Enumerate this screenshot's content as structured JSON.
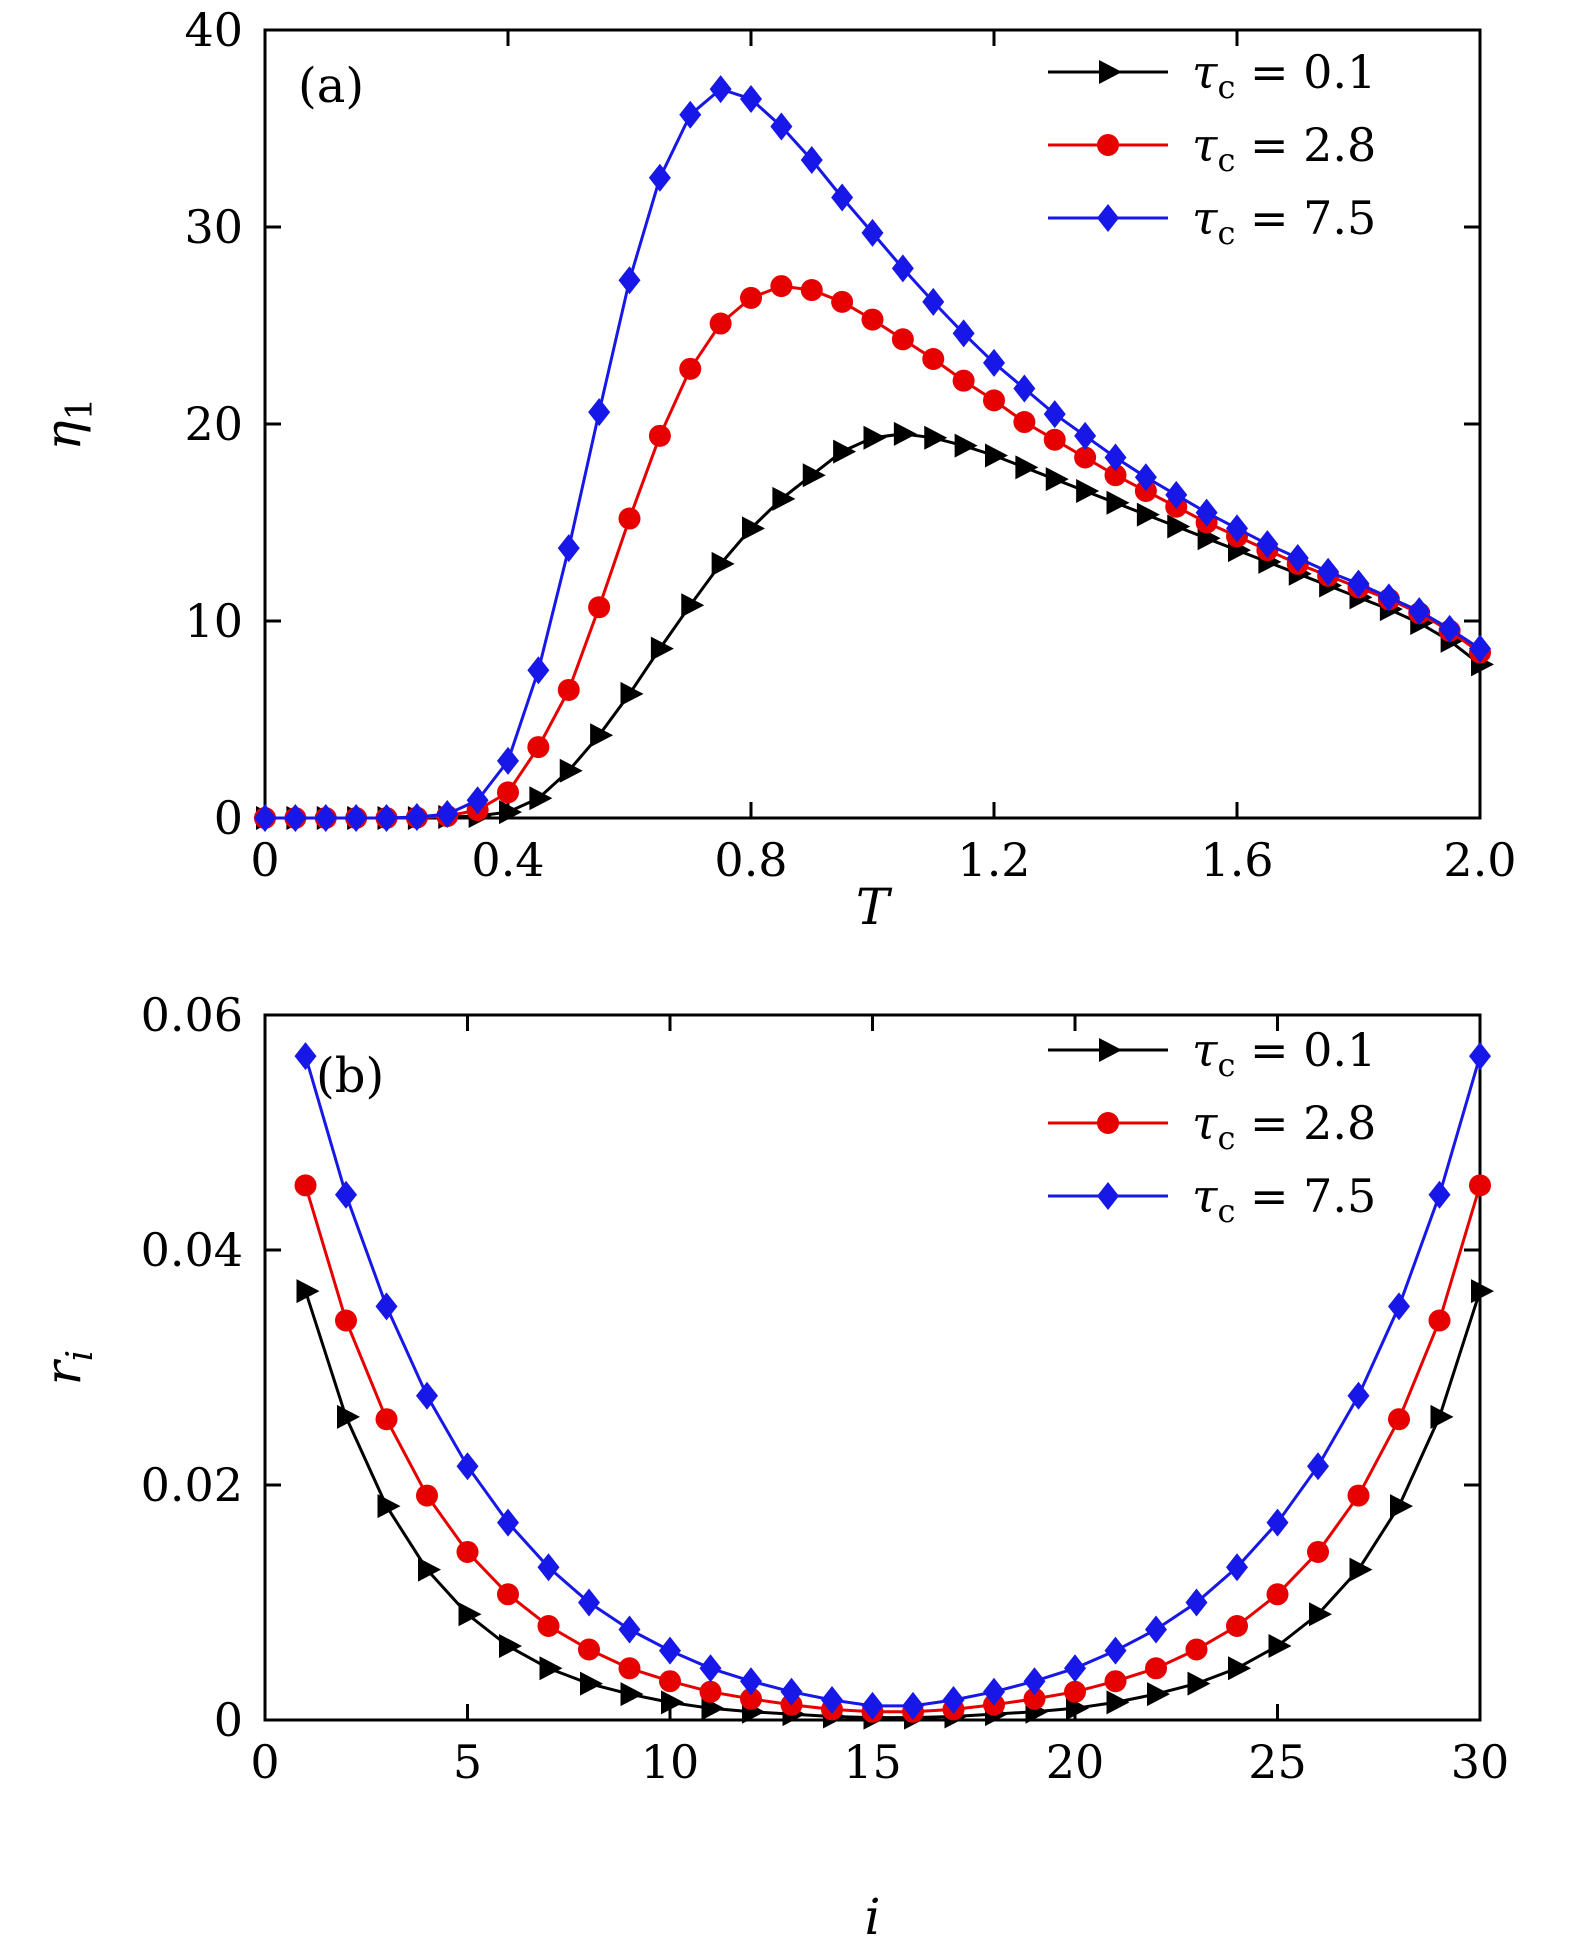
{
  "figure": {
    "background": "#ffffff",
    "panel_labels": [
      "(a)",
      "(b)"
    ]
  },
  "colors": {
    "black": "#000000",
    "red": "#e60000",
    "blue": "#1717e8"
  },
  "chart_data": [
    {
      "type": "line",
      "panel_label": "(a)",
      "xlabel": "T",
      "xlabel_italic": true,
      "ylabel": {
        "sym": "η",
        "sub": "1",
        "sub_italic": false
      },
      "xlim": [
        0,
        2.0
      ],
      "ylim": [
        0,
        40
      ],
      "xticks": {
        "values": [
          0,
          0.4,
          0.8,
          1.2,
          1.6,
          2.0
        ],
        "labels": [
          "0",
          "0.4",
          "0.8",
          "1.2",
          "1.6",
          "2.0"
        ]
      },
      "yticks": {
        "values": [
          0,
          10,
          20,
          30,
          40
        ],
        "labels": [
          "0",
          "10",
          "20",
          "30",
          "40"
        ]
      },
      "grid": false,
      "legend_position": "top-right",
      "series": [
        {
          "id": "tauc-0p1",
          "name": "τc = 0.1",
          "label": {
            "sym": "τ",
            "sub": "c",
            "rest": "= 0.1"
          },
          "color": "#000000",
          "marker": "triangle-right",
          "x": [
            0,
            0.05,
            0.1,
            0.15,
            0.2,
            0.25,
            0.3,
            0.35,
            0.4,
            0.45,
            0.5,
            0.55,
            0.6,
            0.65,
            0.7,
            0.75,
            0.8,
            0.85,
            0.9,
            0.95,
            1,
            1.05,
            1.1,
            1.15,
            1.2,
            1.25,
            1.3,
            1.35,
            1.4,
            1.45,
            1.5,
            1.55,
            1.6,
            1.65,
            1.7,
            1.75,
            1.8,
            1.85,
            1.9,
            1.95,
            2
          ],
          "y": [
            0,
            0,
            0,
            0,
            0,
            0,
            0.05,
            0.1,
            0.3,
            1,
            2.4,
            4.2,
            6.3,
            8.6,
            10.8,
            12.9,
            14.7,
            16.2,
            17.4,
            18.6,
            19.3,
            19.5,
            19.3,
            18.9,
            18.4,
            17.8,
            17.2,
            16.6,
            16,
            15.4,
            14.8,
            14.2,
            13.6,
            13,
            12.4,
            11.8,
            11.2,
            10.6,
            9.9,
            9,
            7.8
          ]
        },
        {
          "id": "tauc-2p8",
          "name": "τc = 2.8",
          "label": {
            "sym": "τ",
            "sub": "c",
            "rest": "= 2.8"
          },
          "color": "#e60000",
          "marker": "circle",
          "x": [
            0,
            0.05,
            0.1,
            0.15,
            0.2,
            0.25,
            0.3,
            0.35,
            0.4,
            0.45,
            0.5,
            0.55,
            0.6,
            0.65,
            0.7,
            0.75,
            0.8,
            0.85,
            0.9,
            0.95,
            1,
            1.05,
            1.1,
            1.15,
            1.2,
            1.25,
            1.3,
            1.35,
            1.4,
            1.45,
            1.5,
            1.55,
            1.6,
            1.65,
            1.7,
            1.75,
            1.8,
            1.85,
            1.9,
            1.95,
            2
          ],
          "y": [
            0,
            0,
            0,
            0,
            0,
            0.02,
            0.1,
            0.4,
            1.3,
            3.6,
            6.5,
            10.7,
            15.2,
            19.4,
            22.8,
            25.1,
            26.4,
            27,
            26.8,
            26.2,
            25.3,
            24.3,
            23.3,
            22.2,
            21.2,
            20.1,
            19.2,
            18.3,
            17.4,
            16.6,
            15.8,
            15,
            14.3,
            13.6,
            12.9,
            12.3,
            11.7,
            11.1,
            10.4,
            9.5,
            8.4
          ]
        },
        {
          "id": "tauc-7p5",
          "name": "τc = 7.5",
          "label": {
            "sym": "τ",
            "sub": "c",
            "rest": "= 7.5"
          },
          "color": "#1717e8",
          "marker": "diamond",
          "x": [
            0,
            0.05,
            0.1,
            0.15,
            0.2,
            0.25,
            0.3,
            0.35,
            0.4,
            0.45,
            0.5,
            0.55,
            0.6,
            0.65,
            0.7,
            0.75,
            0.8,
            0.85,
            0.9,
            0.95,
            1,
            1.05,
            1.1,
            1.15,
            1.2,
            1.25,
            1.3,
            1.35,
            1.4,
            1.45,
            1.5,
            1.55,
            1.6,
            1.65,
            1.7,
            1.75,
            1.8,
            1.85,
            1.9,
            1.95,
            2
          ],
          "y": [
            0,
            0,
            0,
            0,
            0,
            0.05,
            0.2,
            0.9,
            2.9,
            7.5,
            13.7,
            20.6,
            27.3,
            32.5,
            35.7,
            37,
            36.5,
            35.1,
            33.4,
            31.5,
            29.7,
            27.9,
            26.2,
            24.6,
            23.1,
            21.8,
            20.5,
            19.4,
            18.3,
            17.3,
            16.4,
            15.5,
            14.7,
            13.9,
            13.2,
            12.5,
            11.9,
            11.2,
            10.5,
            9.6,
            8.6
          ]
        }
      ]
    },
    {
      "type": "line",
      "panel_label": "(b)",
      "xlabel": "i",
      "xlabel_italic": true,
      "ylabel": {
        "sym": "r",
        "sub": "i",
        "sub_italic": true
      },
      "xlim": [
        0,
        30
      ],
      "ylim": [
        0,
        0.06
      ],
      "xticks": {
        "values": [
          0,
          5,
          10,
          15,
          20,
          25,
          30
        ],
        "labels": [
          "0",
          "5",
          "10",
          "15",
          "20",
          "25",
          "30"
        ]
      },
      "yticks": {
        "values": [
          0,
          0.02,
          0.04,
          0.06
        ],
        "labels": [
          "0",
          "0.02",
          "0.04",
          "0.06"
        ]
      },
      "grid": false,
      "legend_position": "top-right",
      "series": [
        {
          "id": "tauc-0p1",
          "name": "τc = 0.1",
          "label": {
            "sym": "τ",
            "sub": "c",
            "rest": "= 0.1"
          },
          "color": "#000000",
          "marker": "triangle-right",
          "x": [
            1,
            2,
            3,
            4,
            5,
            6,
            7,
            8,
            9,
            10,
            11,
            12,
            13,
            14,
            15,
            16,
            17,
            18,
            19,
            20,
            21,
            22,
            23,
            24,
            25,
            26,
            27,
            28,
            29,
            30
          ],
          "y": [
            0.0365,
            0.0258,
            0.0182,
            0.0128,
            0.009,
            0.0063,
            0.0044,
            0.0031,
            0.0022,
            0.0015,
            0.001,
            0.0007,
            0.0005,
            0.0003,
            0.0002,
            0.0002,
            0.0003,
            0.0005,
            0.0007,
            0.001,
            0.0015,
            0.0022,
            0.0031,
            0.0044,
            0.0063,
            0.009,
            0.0128,
            0.0182,
            0.0258,
            0.0365
          ]
        },
        {
          "id": "tauc-2p8",
          "name": "τc = 2.8",
          "label": {
            "sym": "τ",
            "sub": "c",
            "rest": "= 2.8"
          },
          "color": "#e60000",
          "marker": "circle",
          "x": [
            1,
            2,
            3,
            4,
            5,
            6,
            7,
            8,
            9,
            10,
            11,
            12,
            13,
            14,
            15,
            16,
            17,
            18,
            19,
            20,
            21,
            22,
            23,
            24,
            25,
            26,
            27,
            28,
            29,
            30
          ],
          "y": [
            0.0455,
            0.034,
            0.0256,
            0.0191,
            0.0143,
            0.0107,
            0.008,
            0.006,
            0.0044,
            0.0033,
            0.0024,
            0.0018,
            0.0013,
            0.0009,
            0.0007,
            0.0007,
            0.0009,
            0.0013,
            0.0018,
            0.0024,
            0.0033,
            0.0044,
            0.006,
            0.008,
            0.0107,
            0.0143,
            0.0191,
            0.0256,
            0.034,
            0.0455
          ]
        },
        {
          "id": "tauc-7p5",
          "name": "τc = 7.5",
          "label": {
            "sym": "τ",
            "sub": "c",
            "rest": "= 7.5"
          },
          "color": "#1717e8",
          "marker": "diamond",
          "x": [
            1,
            2,
            3,
            4,
            5,
            6,
            7,
            8,
            9,
            10,
            11,
            12,
            13,
            14,
            15,
            16,
            17,
            18,
            19,
            20,
            21,
            22,
            23,
            24,
            25,
            26,
            27,
            28,
            29,
            30
          ],
          "y": [
            0.0565,
            0.0447,
            0.0352,
            0.0276,
            0.0216,
            0.0168,
            0.013,
            0.01,
            0.0077,
            0.0059,
            0.0044,
            0.0033,
            0.0024,
            0.0017,
            0.0012,
            0.0012,
            0.0017,
            0.0024,
            0.0033,
            0.0044,
            0.0059,
            0.0077,
            0.01,
            0.013,
            0.0168,
            0.0216,
            0.0276,
            0.0352,
            0.0447,
            0.0565
          ]
        }
      ]
    }
  ]
}
